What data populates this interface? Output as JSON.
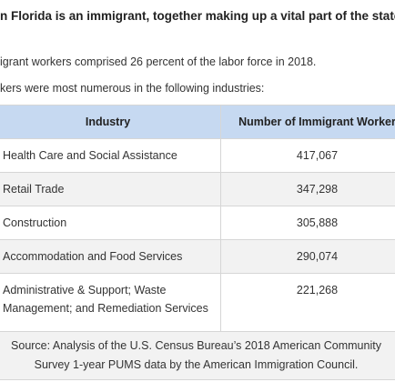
{
  "header": {
    "title": "n Florida is an immigrant, together making up a vital part of the state’s lab"
  },
  "paragraphs": [
    "igrant workers comprised 26 percent of the labor force in 2018.",
    "kers were most numerous in the following industries:"
  ],
  "table": {
    "columns": [
      "Industry",
      "Number of Immigrant Worker"
    ],
    "rows": [
      [
        "Health Care and Social Assistance",
        "417,067"
      ],
      [
        "Retail Trade",
        "347,298"
      ],
      [
        "Construction",
        "305,888"
      ],
      [
        "Accommodation and Food Services",
        "290,074"
      ],
      [
        "Administrative & Support; Waste Management; and Remediation Services",
        "221,268"
      ]
    ],
    "source": "Source: Analysis of the U.S. Census Bureau’s 2018 American Community Survey 1-year PUMS data by the American Immigration Council."
  }
}
